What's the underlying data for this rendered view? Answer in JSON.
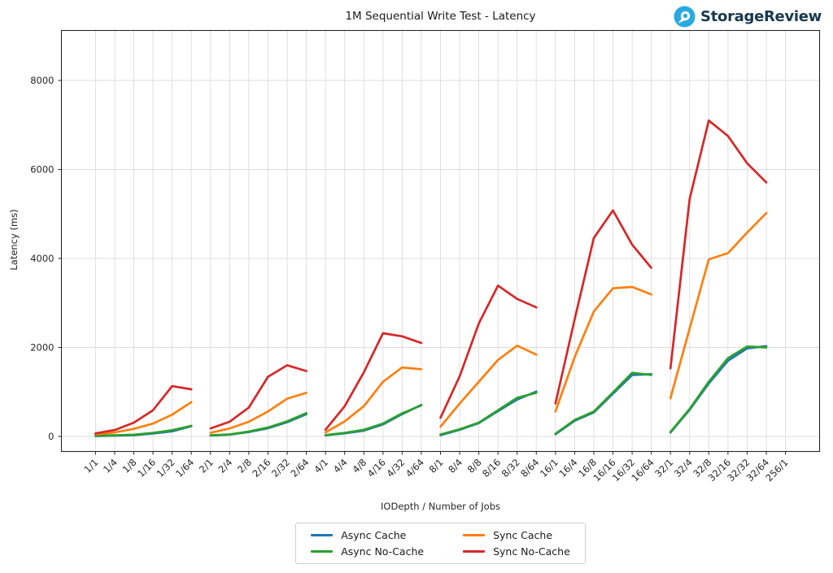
{
  "brand": {
    "name": "StorageReview",
    "icon": "storagereview-pin-icon",
    "icon_color": "#29a9e1",
    "text_color": "#17394f"
  },
  "chart_data": {
    "type": "line",
    "title": "1M Sequential Write Test - Latency",
    "xlabel": "IODepth / Number of Jobs",
    "ylabel": "Latency (ms)",
    "ylim": [
      0,
      9100
    ],
    "yticks": [
      0,
      2000,
      4000,
      6000,
      8000
    ],
    "grid": true,
    "grid_color": "#dcdcdc",
    "background": "#ffffff",
    "legend_position": "bottom-center",
    "x_tick_rotation": 45,
    "categories": [
      "1/1",
      "1/4",
      "1/8",
      "1/16",
      "1/32",
      "1/64",
      "2/1",
      "2/4",
      "2/8",
      "2/16",
      "2/32",
      "2/64",
      "4/1",
      "4/4",
      "4/8",
      "4/16",
      "4/32",
      "4/64",
      "8/1",
      "8/4",
      "8/8",
      "8/16",
      "8/32",
      "8/64",
      "16/1",
      "16/4",
      "16/8",
      "16/16",
      "16/32",
      "16/64",
      "32/1",
      "32/4",
      "32/8",
      "32/16",
      "32/32",
      "32/64",
      "256/1"
    ],
    "segments": [
      [
        0,
        5
      ],
      [
        6,
        11
      ],
      [
        12,
        17
      ],
      [
        18,
        23
      ],
      [
        24,
        29
      ],
      [
        30,
        35
      ],
      [
        36,
        36
      ]
    ],
    "series": [
      {
        "name": "Async Cache",
        "color": "#1f77b4",
        "values": [
          10,
          18,
          30,
          65,
          115,
          230,
          20,
          40,
          100,
          185,
          320,
          500,
          25,
          70,
          130,
          270,
          500,
          710,
          30,
          150,
          300,
          570,
          830,
          1010,
          50,
          350,
          540,
          960,
          1380,
          1400,
          90,
          600,
          1190,
          1700,
          1980,
          2030,
          null
        ]
      },
      {
        "name": "Async No-Cache",
        "color": "#2ca02c",
        "values": [
          20,
          25,
          40,
          80,
          140,
          240,
          25,
          45,
          110,
          200,
          340,
          525,
          30,
          80,
          150,
          290,
          520,
          700,
          45,
          160,
          310,
          590,
          870,
          980,
          60,
          370,
          560,
          990,
          1430,
          1380,
          100,
          620,
          1230,
          1760,
          2020,
          2000,
          null
        ]
      },
      {
        "name": "Sync Cache",
        "color": "#ff7f0e",
        "values": [
          50,
          90,
          170,
          290,
          490,
          770,
          80,
          180,
          330,
          560,
          850,
          980,
          90,
          340,
          680,
          1230,
          1550,
          1510,
          220,
          740,
          1230,
          1720,
          2040,
          1840,
          560,
          1780,
          2810,
          3330,
          3360,
          3190,
          860,
          2430,
          3980,
          4120,
          4580,
          5020,
          null
        ]
      },
      {
        "name": "Sync No-Cache",
        "color": "#d62728",
        "values": [
          70,
          145,
          310,
          590,
          1130,
          1060,
          180,
          330,
          650,
          1340,
          1600,
          1470,
          150,
          680,
          1440,
          2320,
          2250,
          2100,
          420,
          1350,
          2540,
          3390,
          3090,
          2900,
          740,
          2630,
          4460,
          5080,
          4310,
          3790,
          1530,
          5340,
          7100,
          6750,
          6140,
          5710,
          null
        ]
      }
    ]
  }
}
